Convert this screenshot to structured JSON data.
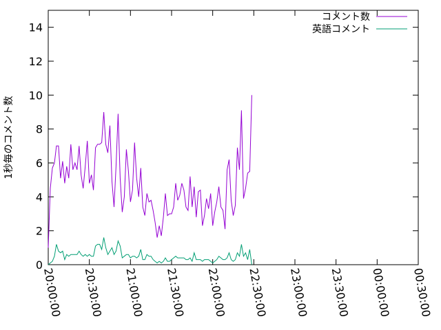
{
  "chart_data": {
    "type": "line",
    "title": "",
    "xlabel": "",
    "ylabel": "1秒毎のコメント数",
    "ylim": [
      0,
      15
    ],
    "yticks": [
      0,
      2,
      4,
      6,
      8,
      10,
      12,
      14
    ],
    "xlim": [
      "20:00:00",
      "00:30:00"
    ],
    "xticks": [
      "20:00:00",
      "20:30:00",
      "21:00:00",
      "21:30:00",
      "22:00:00",
      "22:30:00",
      "23:00:00",
      "23:30:00",
      "00:00:00",
      "00:30:00"
    ],
    "grid": false,
    "legend_position": "top-right",
    "series": [
      {
        "name": "コメント数",
        "color": "#9400d3",
        "points": [
          [
            "20:00:00",
            1.0
          ],
          [
            "20:01:30",
            4.5
          ],
          [
            "20:03:00",
            5.7
          ],
          [
            "20:04:30",
            6.0
          ],
          [
            "20:06:00",
            7.0
          ],
          [
            "20:07:30",
            7.0
          ],
          [
            "20:09:00",
            5.1
          ],
          [
            "20:10:30",
            6.1
          ],
          [
            "20:12:00",
            4.8
          ],
          [
            "20:13:30",
            5.8
          ],
          [
            "20:15:00",
            5.1
          ],
          [
            "20:16:30",
            7.1
          ],
          [
            "20:18:00",
            5.6
          ],
          [
            "20:19:30",
            6.0
          ],
          [
            "20:21:00",
            5.6
          ],
          [
            "20:22:30",
            7.0
          ],
          [
            "20:24:00",
            5.3
          ],
          [
            "20:25:30",
            4.5
          ],
          [
            "20:27:00",
            5.8
          ],
          [
            "20:28:30",
            7.3
          ],
          [
            "20:30:00",
            4.8
          ],
          [
            "20:31:30",
            5.3
          ],
          [
            "20:33:00",
            4.4
          ],
          [
            "20:34:30",
            6.9
          ],
          [
            "20:36:00",
            7.1
          ],
          [
            "20:37:30",
            7.1
          ],
          [
            "20:39:00",
            7.2
          ],
          [
            "20:40:30",
            9.0
          ],
          [
            "20:42:00",
            7.1
          ],
          [
            "20:43:30",
            6.6
          ],
          [
            "20:45:00",
            8.2
          ],
          [
            "20:46:30",
            4.9
          ],
          [
            "20:48:00",
            3.4
          ],
          [
            "20:49:30",
            5.8
          ],
          [
            "20:51:00",
            8.9
          ],
          [
            "20:52:30",
            5.1
          ],
          [
            "20:54:00",
            3.1
          ],
          [
            "20:55:30",
            4.0
          ],
          [
            "20:57:00",
            6.8
          ],
          [
            "20:58:30",
            5.5
          ],
          [
            "21:00:00",
            3.7
          ],
          [
            "21:01:30",
            4.4
          ],
          [
            "21:03:00",
            7.2
          ],
          [
            "21:04:30",
            5.1
          ],
          [
            "21:06:00",
            4.0
          ],
          [
            "21:07:30",
            5.7
          ],
          [
            "21:09:00",
            3.4
          ],
          [
            "21:10:30",
            2.9
          ],
          [
            "21:12:00",
            4.2
          ],
          [
            "21:13:30",
            3.7
          ],
          [
            "21:15:00",
            3.8
          ],
          [
            "21:16:30",
            3.2
          ],
          [
            "21:18:00",
            2.5
          ],
          [
            "21:19:30",
            1.6
          ],
          [
            "21:21:00",
            2.3
          ],
          [
            "21:22:30",
            1.7
          ],
          [
            "21:24:00",
            2.8
          ],
          [
            "21:25:30",
            4.2
          ],
          [
            "21:27:00",
            2.9
          ],
          [
            "21:28:30",
            3.0
          ],
          [
            "21:30:00",
            3.0
          ],
          [
            "21:31:30",
            3.4
          ],
          [
            "21:33:00",
            4.8
          ],
          [
            "21:34:30",
            3.8
          ],
          [
            "21:36:00",
            4.1
          ],
          [
            "21:37:30",
            4.8
          ],
          [
            "21:39:00",
            4.4
          ],
          [
            "21:40:30",
            3.4
          ],
          [
            "21:42:00",
            3.2
          ],
          [
            "21:43:30",
            5.2
          ],
          [
            "21:45:00",
            3.4
          ],
          [
            "21:46:30",
            4.6
          ],
          [
            "21:48:00",
            2.8
          ],
          [
            "21:49:30",
            4.3
          ],
          [
            "21:51:00",
            4.4
          ],
          [
            "21:52:30",
            2.3
          ],
          [
            "21:54:00",
            2.9
          ],
          [
            "21:55:30",
            3.9
          ],
          [
            "21:57:00",
            3.3
          ],
          [
            "21:58:30",
            4.2
          ],
          [
            "22:00:00",
            2.3
          ],
          [
            "22:01:30",
            3.1
          ],
          [
            "22:03:00",
            3.7
          ],
          [
            "22:04:30",
            4.6
          ],
          [
            "22:06:00",
            3.4
          ],
          [
            "22:07:30",
            3.2
          ],
          [
            "22:09:00",
            2.1
          ],
          [
            "22:10:30",
            5.6
          ],
          [
            "22:12:00",
            6.2
          ],
          [
            "22:13:30",
            3.8
          ],
          [
            "22:15:00",
            2.9
          ],
          [
            "22:16:30",
            3.5
          ],
          [
            "22:18:00",
            6.9
          ],
          [
            "22:19:30",
            5.6
          ],
          [
            "22:21:00",
            9.1
          ],
          [
            "22:22:30",
            3.9
          ],
          [
            "22:24:00",
            4.5
          ],
          [
            "22:25:30",
            5.4
          ],
          [
            "22:27:00",
            5.5
          ],
          [
            "22:28:30",
            10.0
          ]
        ]
      },
      {
        "name": "英語コメント",
        "color": "#009e73",
        "points": [
          [
            "20:00:00",
            0.0
          ],
          [
            "20:01:30",
            0.1
          ],
          [
            "20:03:00",
            0.2
          ],
          [
            "20:04:30",
            0.5
          ],
          [
            "20:06:00",
            1.2
          ],
          [
            "20:07:30",
            0.8
          ],
          [
            "20:09:00",
            0.7
          ],
          [
            "20:10:30",
            0.8
          ],
          [
            "20:12:00",
            0.3
          ],
          [
            "20:13:30",
            0.6
          ],
          [
            "20:15:00",
            0.5
          ],
          [
            "20:16:30",
            0.6
          ],
          [
            "20:18:00",
            0.6
          ],
          [
            "20:19:30",
            0.6
          ],
          [
            "20:21:00",
            0.6
          ],
          [
            "20:22:30",
            0.8
          ],
          [
            "20:24:00",
            0.6
          ],
          [
            "20:25:30",
            0.5
          ],
          [
            "20:27:00",
            0.6
          ],
          [
            "20:28:30",
            0.5
          ],
          [
            "20:30:00",
            0.6
          ],
          [
            "20:31:30",
            0.5
          ],
          [
            "20:33:00",
            0.5
          ],
          [
            "20:34:30",
            1.1
          ],
          [
            "20:36:00",
            1.2
          ],
          [
            "20:37:30",
            1.2
          ],
          [
            "20:39:00",
            0.9
          ],
          [
            "20:40:30",
            1.6
          ],
          [
            "20:42:00",
            1.0
          ],
          [
            "20:43:30",
            0.6
          ],
          [
            "20:45:00",
            0.8
          ],
          [
            "20:46:30",
            1.0
          ],
          [
            "20:48:00",
            0.6
          ],
          [
            "20:49:30",
            0.8
          ],
          [
            "20:51:00",
            1.4
          ],
          [
            "20:52:30",
            1.1
          ],
          [
            "20:54:00",
            0.4
          ],
          [
            "20:55:30",
            0.5
          ],
          [
            "20:57:00",
            0.6
          ],
          [
            "20:58:30",
            0.6
          ],
          [
            "21:00:00",
            0.4
          ],
          [
            "21:01:30",
            0.5
          ],
          [
            "21:03:00",
            0.5
          ],
          [
            "21:04:30",
            0.4
          ],
          [
            "21:06:00",
            0.5
          ],
          [
            "21:07:30",
            0.9
          ],
          [
            "21:09:00",
            0.3
          ],
          [
            "21:10:30",
            0.3
          ],
          [
            "21:12:00",
            0.6
          ],
          [
            "21:13:30",
            0.5
          ],
          [
            "21:15:00",
            0.5
          ],
          [
            "21:16:30",
            0.3
          ],
          [
            "21:18:00",
            0.2
          ],
          [
            "21:19:30",
            0.1
          ],
          [
            "21:21:00",
            0.2
          ],
          [
            "21:22:30",
            0.1
          ],
          [
            "21:24:00",
            0.2
          ],
          [
            "21:25:30",
            0.4
          ],
          [
            "21:27:00",
            0.2
          ],
          [
            "21:28:30",
            0.2
          ],
          [
            "21:30:00",
            0.3
          ],
          [
            "21:31:30",
            0.4
          ],
          [
            "21:33:00",
            0.5
          ],
          [
            "21:34:30",
            0.4
          ],
          [
            "21:36:00",
            0.4
          ],
          [
            "21:37:30",
            0.4
          ],
          [
            "21:39:00",
            0.4
          ],
          [
            "21:40:30",
            0.3
          ],
          [
            "21:42:00",
            0.3
          ],
          [
            "21:43:30",
            0.4
          ],
          [
            "21:45:00",
            0.2
          ],
          [
            "21:46:30",
            0.7
          ],
          [
            "21:48:00",
            0.3
          ],
          [
            "21:49:30",
            0.3
          ],
          [
            "21:51:00",
            0.3
          ],
          [
            "21:52:30",
            0.2
          ],
          [
            "21:54:00",
            0.3
          ],
          [
            "21:55:30",
            0.3
          ],
          [
            "21:57:00",
            0.3
          ],
          [
            "21:58:30",
            0.2
          ],
          [
            "22:00:00",
            0.1
          ],
          [
            "22:01:30",
            0.2
          ],
          [
            "22:03:00",
            0.3
          ],
          [
            "22:04:30",
            0.5
          ],
          [
            "22:06:00",
            0.4
          ],
          [
            "22:07:30",
            0.3
          ],
          [
            "22:09:00",
            0.3
          ],
          [
            "22:10:30",
            0.4
          ],
          [
            "22:12:00",
            0.7
          ],
          [
            "22:13:30",
            0.3
          ],
          [
            "22:15:00",
            0.2
          ],
          [
            "22:16:30",
            0.3
          ],
          [
            "22:18:00",
            0.7
          ],
          [
            "22:19:30",
            0.5
          ],
          [
            "22:21:00",
            1.2
          ],
          [
            "22:22:30",
            0.5
          ],
          [
            "22:24:00",
            0.7
          ],
          [
            "22:25:30",
            0.3
          ],
          [
            "22:27:00",
            0.9
          ],
          [
            "22:28:30",
            0.0
          ]
        ]
      }
    ]
  }
}
